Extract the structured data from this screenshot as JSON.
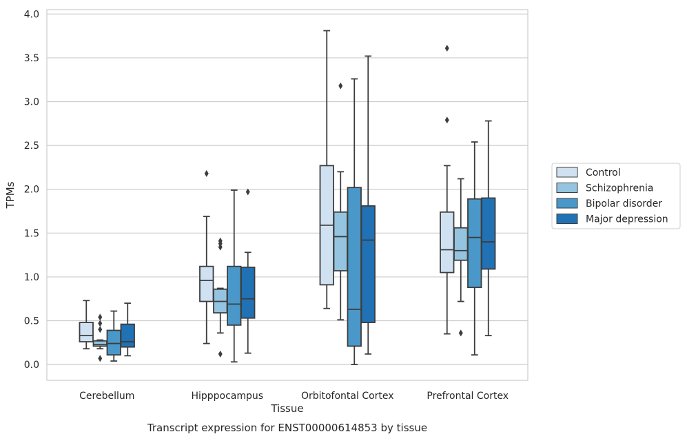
{
  "chart_data": {
    "type": "box",
    "title": "",
    "caption": "Transcript expression for ENST00000614853 by tissue",
    "xlabel": "Tissue",
    "ylabel": "TPMs",
    "ylim": [
      -0.18,
      4.05
    ],
    "yticks": [
      0.0,
      0.5,
      1.0,
      1.5,
      2.0,
      2.5,
      3.0,
      3.5,
      4.0
    ],
    "ytick_labels": [
      "0.0",
      "0.5",
      "1.0",
      "1.5",
      "2.0",
      "2.5",
      "3.0",
      "3.5",
      "4.0"
    ],
    "grid": "horizontal",
    "legend_position": "right",
    "categories": [
      "Cerebellum",
      "Hipppocampus",
      "Orbitofontal Cortex",
      "Prefrontal Cortex"
    ],
    "series": [
      {
        "name": "Control",
        "color": "#d0e1f2",
        "boxes": [
          {
            "q1": 0.26,
            "median": 0.33,
            "q3": 0.48,
            "whisker_low": 0.18,
            "whisker_high": 0.73,
            "outliers": []
          },
          {
            "q1": 0.72,
            "median": 0.96,
            "q3": 1.12,
            "whisker_low": 0.24,
            "whisker_high": 1.69,
            "outliers": [
              2.18
            ]
          },
          {
            "q1": 0.91,
            "median": 1.59,
            "q3": 2.27,
            "whisker_low": 0.64,
            "whisker_high": 3.81,
            "outliers": []
          },
          {
            "q1": 1.05,
            "median": 1.31,
            "q3": 1.74,
            "whisker_low": 0.35,
            "whisker_high": 2.27,
            "outliers": [
              2.79,
              3.61
            ]
          }
        ]
      },
      {
        "name": "Schizophrenia",
        "color": "#94c4df",
        "boxes": [
          {
            "q1": 0.21,
            "median": 0.23,
            "q3": 0.27,
            "whisker_low": 0.18,
            "whisker_high": 0.28,
            "outliers": [
              0.07,
              0.4,
              0.47,
              0.54
            ]
          },
          {
            "q1": 0.59,
            "median": 0.72,
            "q3": 0.86,
            "whisker_low": 0.36,
            "whisker_high": 0.87,
            "outliers": [
              0.12,
              1.34,
              1.38,
              1.41
            ]
          },
          {
            "q1": 1.07,
            "median": 1.46,
            "q3": 1.74,
            "whisker_low": 0.51,
            "whisker_high": 2.2,
            "outliers": [
              3.18
            ]
          },
          {
            "q1": 1.19,
            "median": 1.3,
            "q3": 1.56,
            "whisker_low": 0.72,
            "whisker_high": 2.12,
            "outliers": [
              0.36
            ]
          }
        ]
      },
      {
        "name": "Bipolar disorder",
        "color": "#4a98c9",
        "boxes": [
          {
            "q1": 0.11,
            "median": 0.24,
            "q3": 0.39,
            "whisker_low": 0.04,
            "whisker_high": 0.61,
            "outliers": []
          },
          {
            "q1": 0.45,
            "median": 0.69,
            "q3": 1.12,
            "whisker_low": 0.03,
            "whisker_high": 1.99,
            "outliers": []
          },
          {
            "q1": 0.21,
            "median": 0.63,
            "q3": 2.02,
            "whisker_low": 0.0,
            "whisker_high": 3.26,
            "outliers": []
          },
          {
            "q1": 0.88,
            "median": 1.45,
            "q3": 1.89,
            "whisker_low": 0.11,
            "whisker_high": 2.54,
            "outliers": []
          }
        ]
      },
      {
        "name": "Major depression",
        "color": "#2171b5",
        "boxes": [
          {
            "q1": 0.2,
            "median": 0.26,
            "q3": 0.46,
            "whisker_low": 0.1,
            "whisker_high": 0.7,
            "outliers": []
          },
          {
            "q1": 0.53,
            "median": 0.75,
            "q3": 1.11,
            "whisker_low": 0.13,
            "whisker_high": 1.28,
            "outliers": [
              1.97
            ]
          },
          {
            "q1": 0.48,
            "median": 1.42,
            "q3": 1.81,
            "whisker_low": 0.12,
            "whisker_high": 3.52,
            "outliers": []
          },
          {
            "q1": 1.09,
            "median": 1.4,
            "q3": 1.9,
            "whisker_low": 0.33,
            "whisker_high": 2.78,
            "outliers": []
          }
        ]
      }
    ]
  }
}
